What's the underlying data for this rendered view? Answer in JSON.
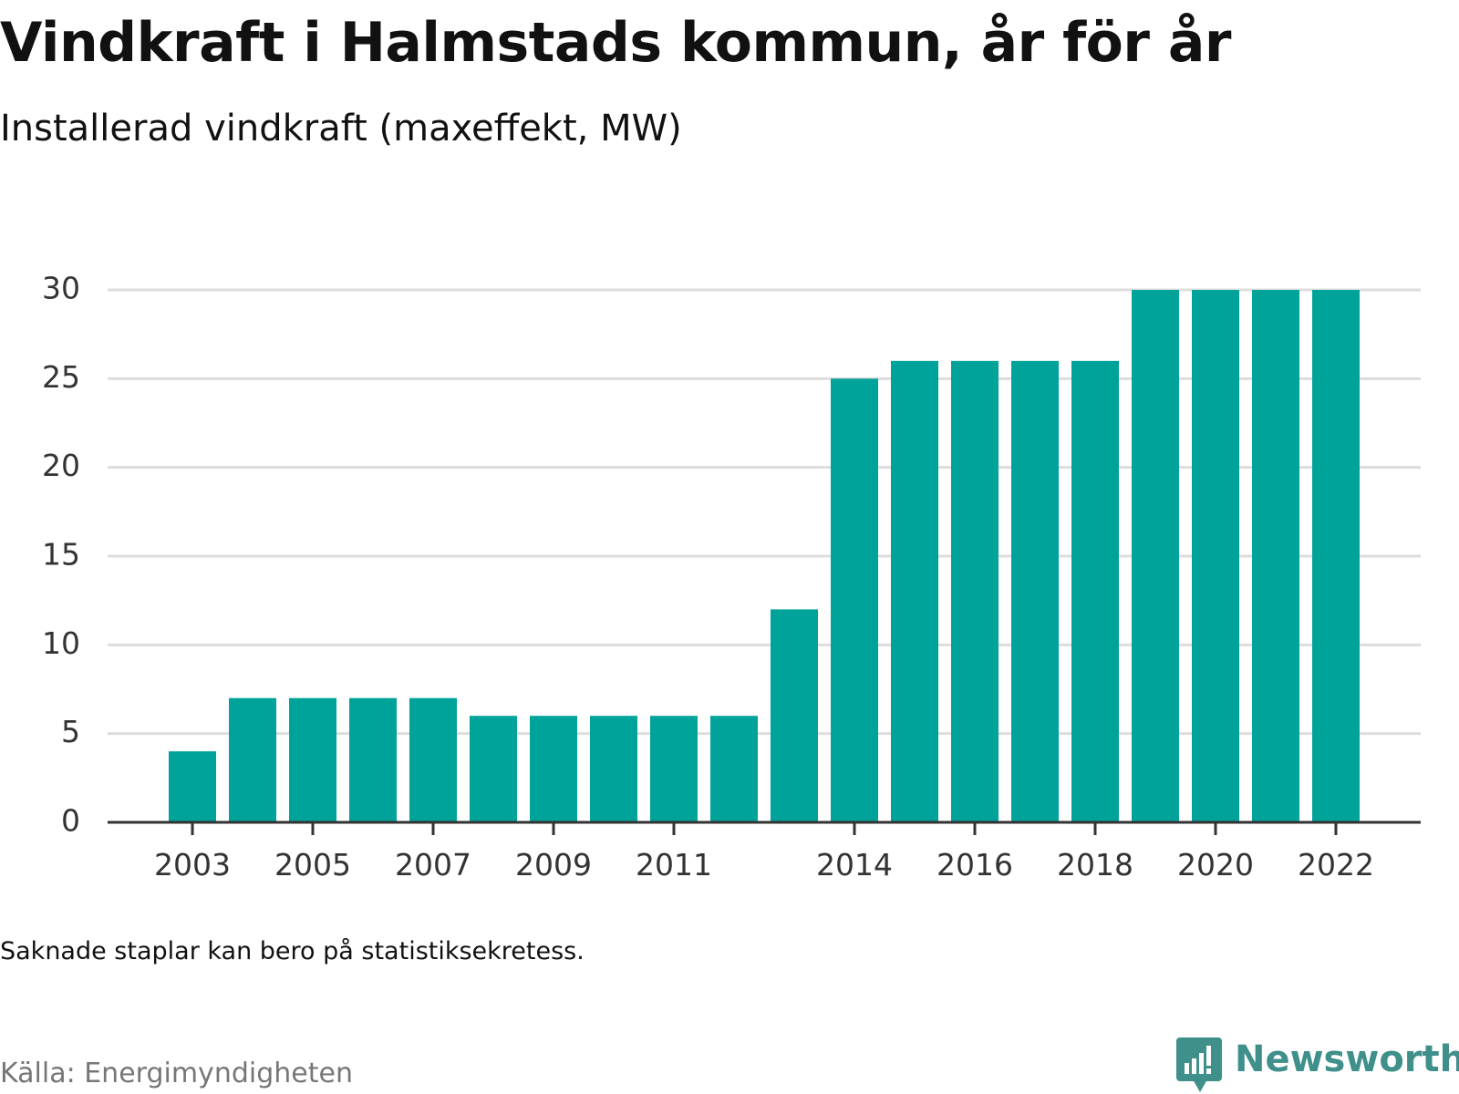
{
  "chart_data": {
    "type": "bar",
    "title": "Vindkraft i Halmstads kommun, år för år",
    "subtitle": "Installerad vindkraft (maxeffekt, MW)",
    "xlabel": "",
    "ylabel": "",
    "categories": [
      "2003",
      "2004",
      "2005",
      "2006",
      "2007",
      "2008",
      "2009",
      "2010",
      "2011",
      "2012",
      "2013",
      "2014",
      "2015",
      "2016",
      "2017",
      "2018",
      "2019",
      "2020",
      "2021",
      "2022"
    ],
    "values": [
      4,
      7,
      7,
      7,
      7,
      6,
      6,
      6,
      6,
      6,
      12,
      25,
      26,
      26,
      26,
      26,
      30,
      30,
      30,
      30
    ],
    "x_tick_labels": [
      "2003",
      "2005",
      "2007",
      "2009",
      "2011",
      "2014",
      "2016",
      "2018",
      "2020",
      "2022"
    ],
    "ylim": [
      0,
      30
    ],
    "y_ticks": [
      0,
      5,
      10,
      15,
      20,
      25,
      30
    ],
    "grid": true,
    "bar_color": "#00a39a"
  },
  "note": "Saknade staplar kan bero på statistiksekretess.",
  "source": "Källa: Energimyndigheten",
  "brand": {
    "name": "Newsworthy",
    "icon": "newsworthy-logo-icon",
    "color": "#3f8f8a"
  }
}
